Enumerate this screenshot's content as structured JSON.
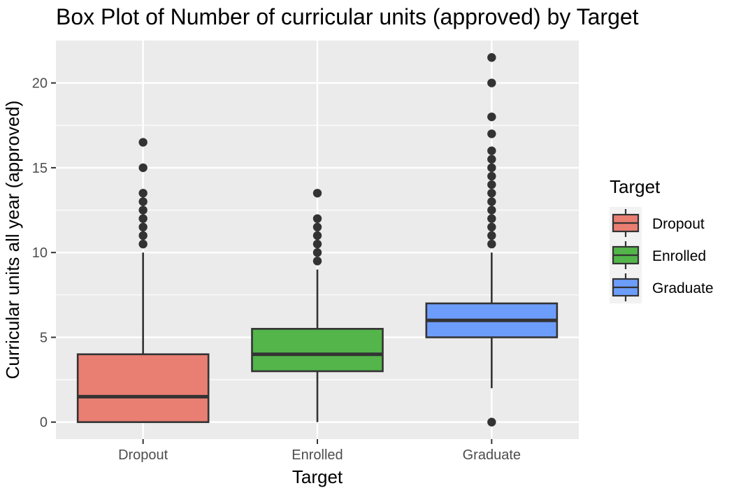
{
  "chart_data": {
    "type": "boxplot",
    "title": "Box Plot of Number of curricular units (approved) by Target",
    "xlabel": "Target",
    "ylabel": "Curricular units all year (approved)",
    "ylim": [
      -1,
      22.5
    ],
    "yticks": [
      0,
      5,
      10,
      15,
      20
    ],
    "ytick_labels": [
      "0",
      "5",
      "10",
      "15",
      "20"
    ],
    "grid": true,
    "legend": {
      "title": "Target",
      "position": "right"
    },
    "categories": [
      "Dropout",
      "Enrolled",
      "Graduate"
    ],
    "boxes": [
      {
        "name": "Dropout",
        "color": "#E97E72",
        "whisker_low": 0,
        "q1": 0,
        "median": 1.5,
        "q3": 4,
        "whisker_high": 10,
        "outliers": [
          10.5,
          11,
          11.5,
          12,
          12.5,
          13,
          13.5,
          15,
          16.5
        ]
      },
      {
        "name": "Enrolled",
        "color": "#53B54A",
        "whisker_low": 0,
        "q1": 3,
        "median": 4,
        "q3": 5.5,
        "whisker_high": 9,
        "outliers": [
          9.5,
          10,
          10.5,
          11,
          11.5,
          12,
          13.5
        ]
      },
      {
        "name": "Graduate",
        "color": "#6D9DFA",
        "whisker_low": 2,
        "q1": 5,
        "median": 6,
        "q3": 7,
        "whisker_high": 10,
        "outliers": [
          0,
          10.5,
          11,
          11.5,
          12,
          12.5,
          13,
          13.5,
          14,
          14.5,
          15,
          15.5,
          16,
          17,
          18,
          20,
          21.5
        ]
      }
    ],
    "colors": {
      "panel": "#EBEBEB",
      "grid": "#FFFFFF",
      "outline": "#333333"
    }
  }
}
